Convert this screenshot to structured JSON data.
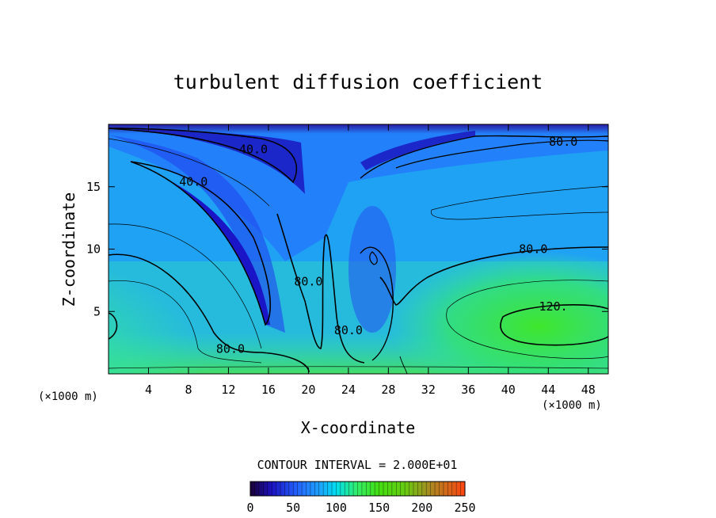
{
  "chart_data": {
    "type": "heatmap",
    "title": "turbulent diffusion coefficient",
    "xlabel": "X-coordinate",
    "ylabel": "Z-coordinate",
    "x_unit": "(×1000 m)",
    "y_unit": "(×1000 m)",
    "xlim": [
      0,
      50
    ],
    "ylim": [
      0,
      20
    ],
    "x_ticks": [
      4,
      8,
      12,
      16,
      20,
      24,
      28,
      32,
      36,
      40,
      44,
      48
    ],
    "y_ticks": [
      5,
      10,
      15
    ],
    "contour_interval_text": "CONTOUR INTERVAL = 2.000E+01",
    "contour_labels": [
      {
        "text": "40.0",
        "x": 14.5,
        "z": 18.0
      },
      {
        "text": "40.0",
        "x": 8.5,
        "z": 15.4
      },
      {
        "text": "80.0",
        "x": 45.5,
        "z": 18.6
      },
      {
        "text": "80.0",
        "x": 42.5,
        "z": 10.0
      },
      {
        "text": "80.0",
        "x": 20.0,
        "z": 7.4
      },
      {
        "text": "80.0",
        "x": 24.0,
        "z": 3.5
      },
      {
        "text": "80.0",
        "x": 12.2,
        "z": 2.0
      },
      {
        "text": "120.",
        "x": 44.5,
        "z": 5.4
      }
    ],
    "colorbar": {
      "min": 0,
      "max": 250,
      "ticks": [
        0,
        50,
        100,
        150,
        200,
        250
      ],
      "stops": [
        {
          "v": 0,
          "color": "#1a0033"
        },
        {
          "v": 25,
          "color": "#1b12c0"
        },
        {
          "v": 55,
          "color": "#2364ff"
        },
        {
          "v": 80,
          "color": "#1ea0ff"
        },
        {
          "v": 100,
          "color": "#00ddee"
        },
        {
          "v": 125,
          "color": "#33ee66"
        },
        {
          "v": 150,
          "color": "#44dd11"
        },
        {
          "v": 180,
          "color": "#66cc11"
        },
        {
          "v": 210,
          "color": "#aa8822"
        },
        {
          "v": 250,
          "color": "#ff4411"
        }
      ]
    }
  }
}
